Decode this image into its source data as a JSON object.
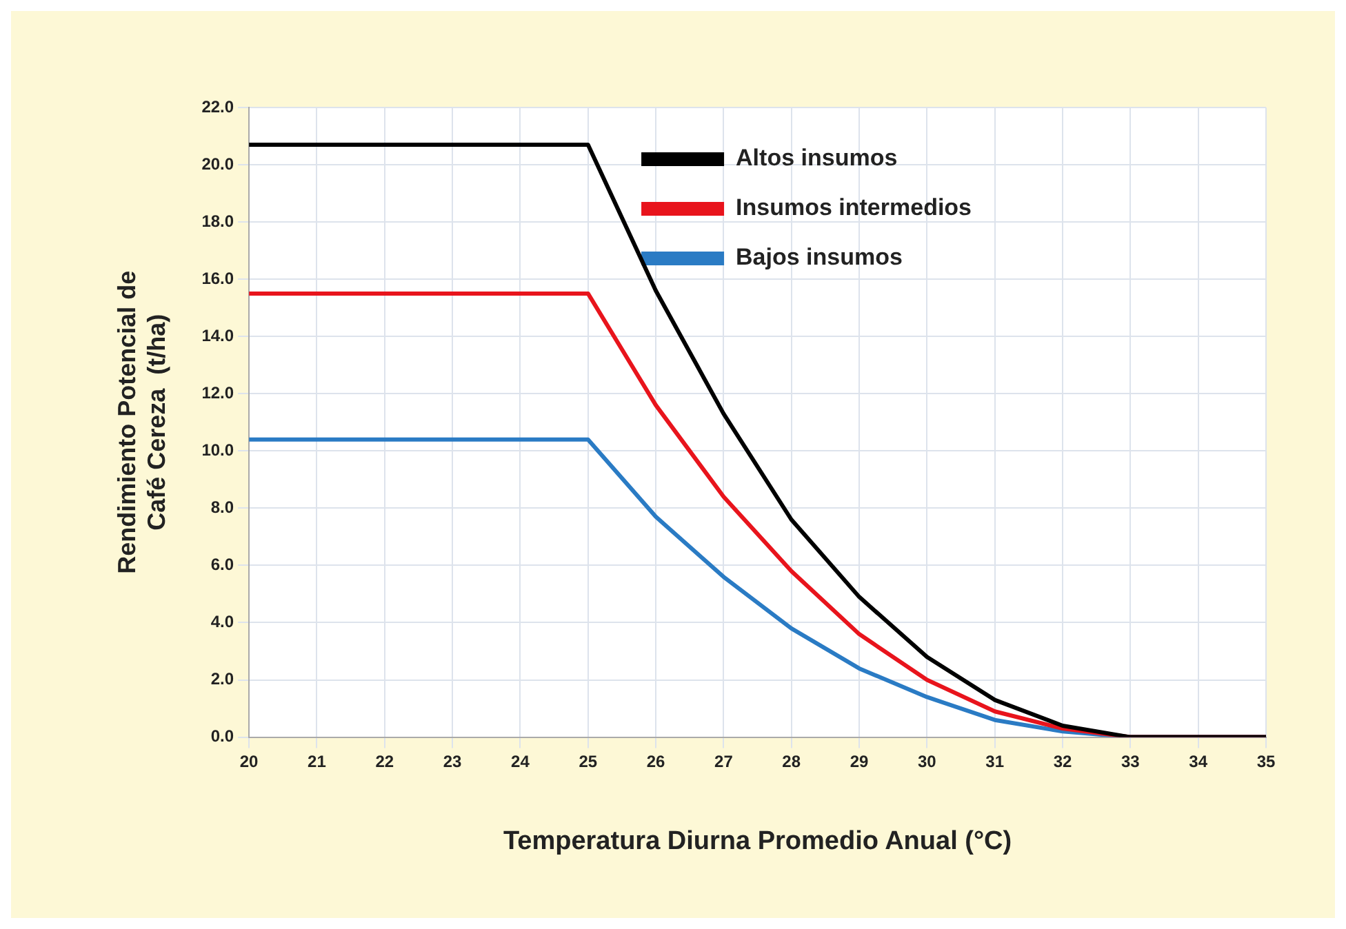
{
  "chart_data": {
    "type": "line",
    "xlabel": "Temperatura Diurna Promedio Anual (°C)",
    "ylabel": "Rendimiento Potencial de Café Cereza  (t/ha)",
    "x": [
      20,
      21,
      22,
      23,
      24,
      25,
      26,
      27,
      28,
      29,
      30,
      31,
      32,
      33,
      34,
      35
    ],
    "series": [
      {
        "name": "Altos insumos",
        "color": "#000000",
        "values": [
          20.7,
          20.7,
          20.7,
          20.7,
          20.7,
          20.7,
          15.6,
          11.3,
          7.6,
          4.9,
          2.8,
          1.3,
          0.4,
          0,
          0,
          0
        ]
      },
      {
        "name": "Insumos intermedios",
        "color": "#e8141c",
        "values": [
          15.5,
          15.5,
          15.5,
          15.5,
          15.5,
          15.5,
          11.6,
          8.4,
          5.8,
          3.6,
          2.0,
          0.9,
          0.3,
          0,
          0,
          0
        ]
      },
      {
        "name": "Bajos insumos",
        "color": "#2a7bc4",
        "values": [
          10.4,
          10.4,
          10.4,
          10.4,
          10.4,
          10.4,
          7.7,
          5.6,
          3.8,
          2.4,
          1.4,
          0.6,
          0.2,
          0,
          0,
          0
        ]
      }
    ],
    "xlim": [
      20,
      35
    ],
    "xticks": [
      20,
      21,
      22,
      23,
      24,
      25,
      26,
      27,
      28,
      29,
      30,
      31,
      32,
      33,
      34,
      35
    ],
    "ylim": [
      0,
      22
    ],
    "yticks": [
      {
        "value": 0,
        "label": "0.0"
      },
      {
        "value": 2,
        "label": "2.0"
      },
      {
        "value": 4,
        "label": "4.0"
      },
      {
        "value": 6,
        "label": "6.0"
      },
      {
        "value": 8,
        "label": "8.0"
      },
      {
        "value": 10,
        "label": "10.0"
      },
      {
        "value": 12,
        "label": "12.0"
      },
      {
        "value": 14,
        "label": "14.0"
      },
      {
        "value": 16,
        "label": "16.0"
      },
      {
        "value": 18,
        "label": "18.0"
      },
      {
        "value": 20,
        "label": "20.0"
      },
      {
        "value": 22,
        "label": "22.0"
      }
    ],
    "grid": true,
    "legend": "top right",
    "marker": "none",
    "line_style": "solid"
  }
}
